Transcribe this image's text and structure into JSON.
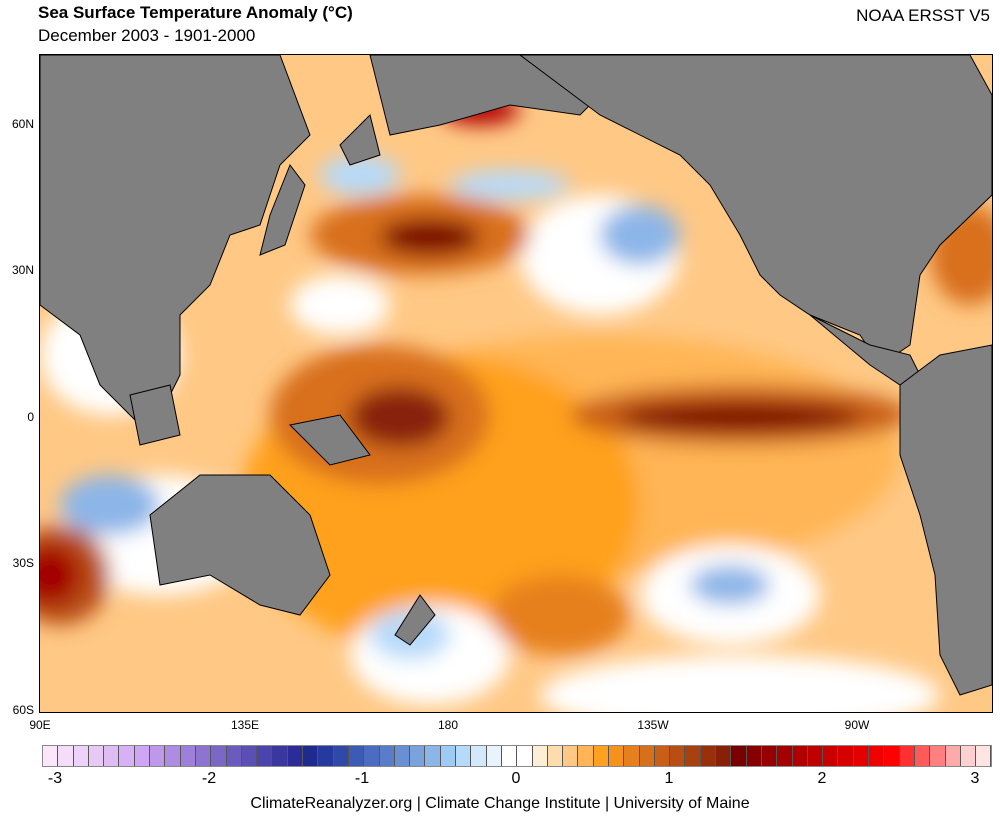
{
  "header": {
    "title": "Sea Surface Temperature Anomaly (°C)",
    "subtitle": "December 2003 - 1901-2000",
    "source": "NOAA ERSST V5"
  },
  "map": {
    "lat_labels": [
      "60N",
      "30N",
      "0",
      "30S",
      "60S"
    ],
    "lon_labels": [
      "90E",
      "135E",
      "180",
      "135W",
      "90W"
    ],
    "land_color": "#808080"
  },
  "colorbar": {
    "ticks": [
      "-3",
      "-2",
      "-1",
      "0",
      "1",
      "2",
      "3"
    ],
    "colors": [
      "#fbe6fb",
      "#f5dcf8",
      "#efd2f7",
      "#e8c8f5",
      "#dfbcf4",
      "#d7b0f6",
      "#cfa5f5",
      "#bf98ec",
      "#ae8ce2",
      "#9e80db",
      "#8c74d0",
      "#7b68c6",
      "#6a5bbd",
      "#5a4fb5",
      "#4a44ab",
      "#3a389f",
      "#2c2c98",
      "#1e2a8e",
      "#253a9e",
      "#2f49a8",
      "#3d5bb5",
      "#4b6cc0",
      "#5a7dca",
      "#6a90d4",
      "#7aa2dd",
      "#8cb5e8",
      "#9fcaf3",
      "#b6dafa",
      "#d2e8fb",
      "#e8f3fd",
      "#ffffff",
      "#ffffff",
      "#ffeed6",
      "#ffdcad",
      "#ffc885",
      "#ffb555",
      "#ffa11f",
      "#f5921c",
      "#e6801c",
      "#d86f1b",
      "#c85e18",
      "#b84e14",
      "#a8400f",
      "#98300b",
      "#882008",
      "#780000",
      "#860000",
      "#960000",
      "#a30000",
      "#b00000",
      "#bd0000",
      "#ca0000",
      "#d70000",
      "#e40000",
      "#f10000",
      "#ff0000",
      "#ff3030",
      "#ff5a5a",
      "#ff8080",
      "#ffaaaa",
      "#ffd0d0",
      "#ffe4e4"
    ]
  },
  "footer": "ClimateReanalyzer.org | Climate Change Institute | University of Maine"
}
